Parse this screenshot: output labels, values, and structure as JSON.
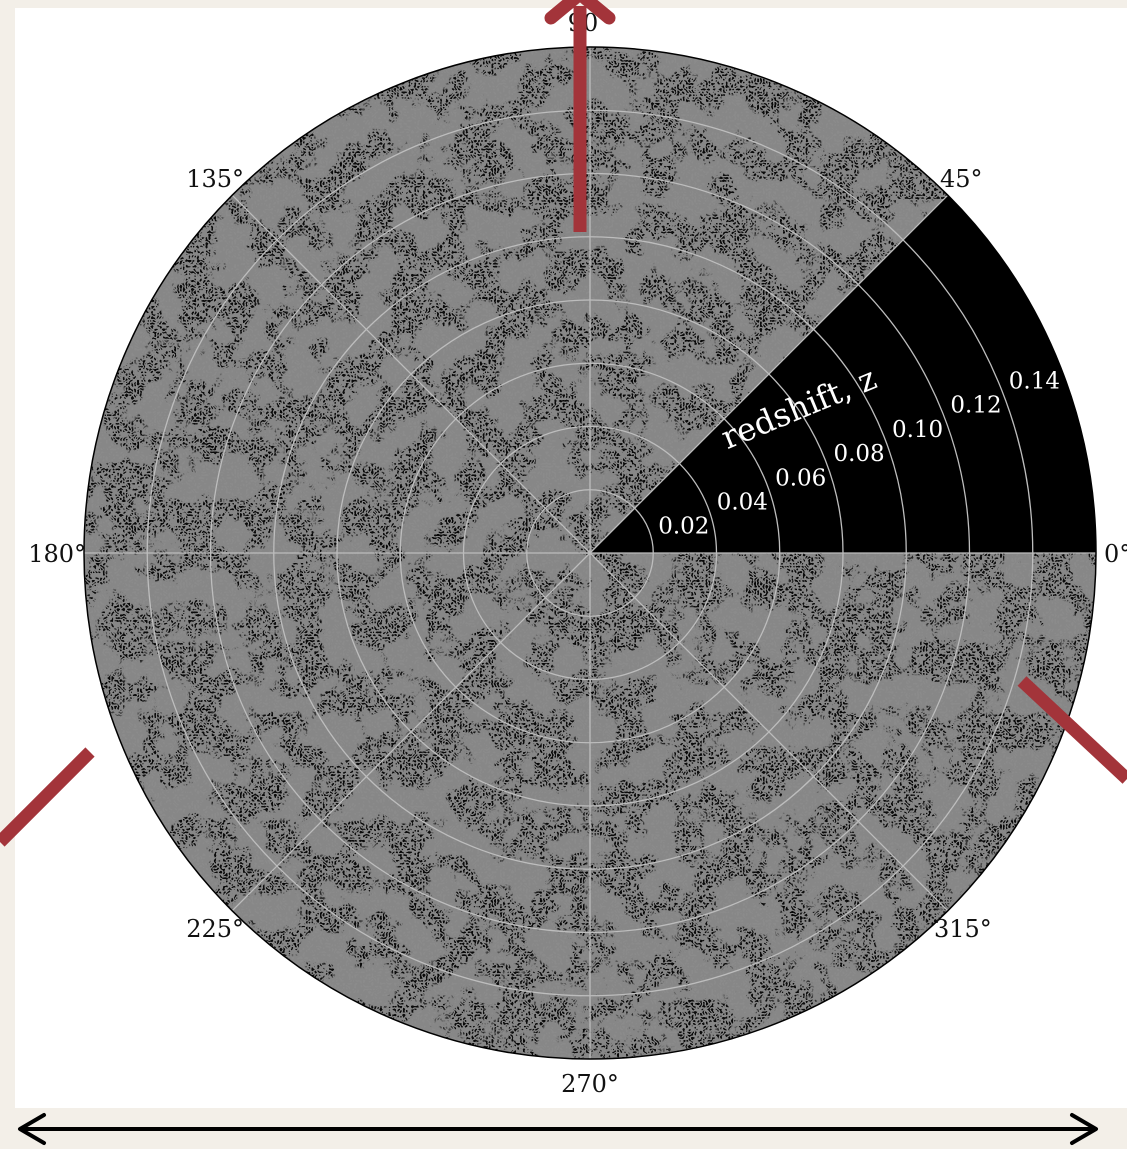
{
  "figure": {
    "axis_title": "redshift, z",
    "angle_labels": [
      "0°",
      "45°",
      "90",
      "135°",
      "180°",
      "225°",
      "270°",
      "315°"
    ],
    "radial_labels": [
      "0.02",
      "0.04",
      "0.06",
      "0.08",
      "0.10",
      "0.12",
      "0.14"
    ],
    "colors": {
      "disc": "#0a0a0a",
      "filaments": "#e8e8e8",
      "grid": "#bdbdbd",
      "arrows": "#a3343a",
      "page": "#f3efe8",
      "panel": "#ffffff",
      "double_arrow": "#000000"
    }
  }
}
